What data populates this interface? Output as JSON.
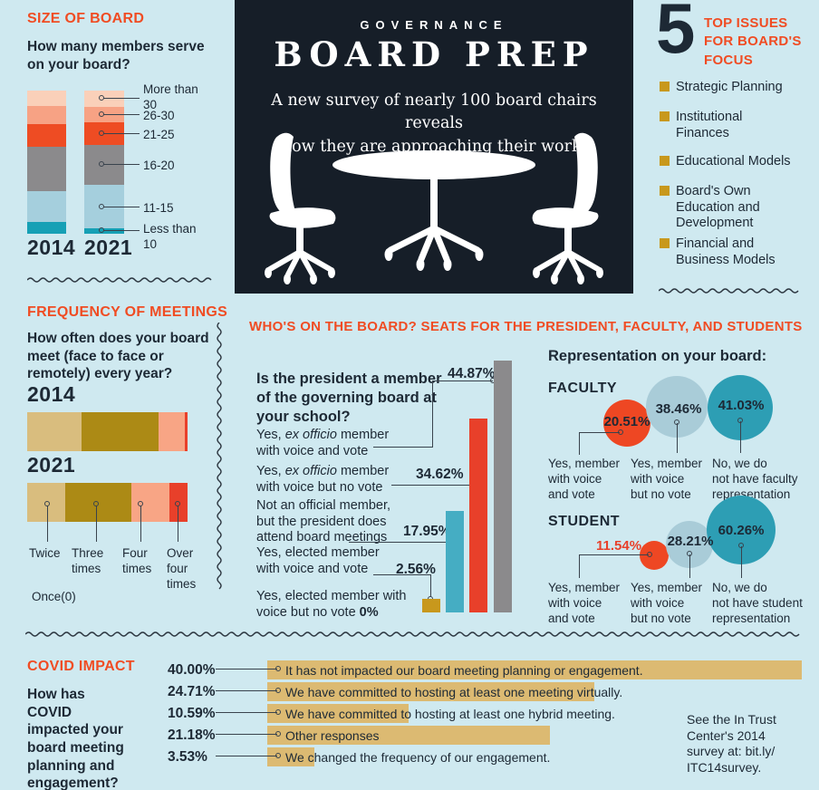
{
  "masthead": {
    "kicker": "GOVERNANCE",
    "title": "BOARD PREP",
    "subtitle": "A new survey of nearly 100 board chairs reveals\nhow they are approaching their work."
  },
  "size_of_board": {
    "heading": "SIZE OF BOARD",
    "question": "How many members serve\non your board?",
    "years": [
      "2014",
      "2021"
    ],
    "labels": [
      "More than\n30",
      "26-30",
      "21-25",
      "16-20",
      "11-15",
      "Less than\n10"
    ]
  },
  "top_issues": {
    "number": "5",
    "heading": "TOP ISSUES\nFOR BOARD'S\nFOCUS",
    "items": [
      "Strategic Planning",
      "Institutional\nFinances",
      "Educational Models",
      "Board's Own\nEducation and\nDevelopment",
      "Financial and\nBusiness Models"
    ]
  },
  "frequency": {
    "heading": "FREQUENCY OF MEETINGS",
    "question": "How often does your board\nmeet (face to face or\nremotely) every year?",
    "years": [
      "2014",
      "2021"
    ],
    "labels": [
      "Twice",
      "Three\ntimes",
      "Four\ntimes",
      "Over\nfour\ntimes"
    ],
    "once_label": "Once(0)"
  },
  "board_seats": {
    "heading": "WHO'S ON THE BOARD?  SEATS FOR THE PRESIDENT, FACULTY, AND STUDENTS",
    "question": "Is the president a member\nof the governing board at\nyour school?",
    "answers": [
      {
        "pre": "Yes, ",
        "italic": "ex officio",
        "post": " member\nwith voice and vote"
      },
      {
        "pre": "Yes, ",
        "italic": "ex officio",
        "post": " member\nwith voice but no vote"
      },
      {
        "pre": "Not an official member,\nbut the president does\nattend board meetings"
      },
      {
        "pre": "Yes, elected member\nwith voice and vote"
      },
      {
        "pre": "Yes, elected member with\nvoice but no vote ",
        "bold": "0%"
      }
    ],
    "values": [
      "44.87%",
      "34.62%",
      "17.95%",
      "2.56%"
    ]
  },
  "representation": {
    "heading": "Representation on your board:",
    "faculty": {
      "heading": "FACULTY",
      "items": [
        {
          "pct": "20.51%",
          "label": "Yes, member\nwith voice\nand vote"
        },
        {
          "pct": "38.46%",
          "label": "Yes, member\nwith voice\nbut no vote"
        },
        {
          "pct": "41.03%",
          "label": "No, we do\nnot have faculty\nrepresentation"
        }
      ]
    },
    "student": {
      "heading": "STUDENT",
      "items": [
        {
          "pct": "11.54%",
          "label": "Yes, member\nwith voice\nand vote"
        },
        {
          "pct": "28.21%",
          "label": "Yes, member\nwith voice\nbut no vote"
        },
        {
          "pct": "60.26%",
          "label": "No, we do\nnot have student\nrepresentation"
        }
      ]
    }
  },
  "covid": {
    "heading": "COVID IMPACT",
    "question": "How has\nCOVID\nimpacted your\nboard meeting\nplanning and\nengagement?",
    "rows": [
      {
        "pct": "40.00%",
        "text": "It has not impacted our board meeting planning or engagement."
      },
      {
        "pct": "24.71%",
        "text": "We have committed to hosting at least one meeting virtually."
      },
      {
        "pct": "10.59%",
        "text": "We have committed to hosting at least one hybrid meeting."
      },
      {
        "pct": "21.18%",
        "text": "Other responses"
      },
      {
        "pct": "3.53%",
        "text": "We changed the frequency of our engagement."
      }
    ],
    "note": "See the In Trust\nCenter's 2014\nsurvey at: bit.ly/\nITC14survey."
  },
  "colors": {
    "background": "#cfe9f0",
    "navy_text": "#1d2935",
    "dark_panel": "#161e28",
    "orange_heading": "#f04c23",
    "red": "#e8402a",
    "salmon": "#f7a284",
    "peach": "#fad0b9",
    "gray": "#8b8a8c",
    "light_blue": "#a5cfdd",
    "teal": "#16a0b5",
    "bar_teal": "#45adc3",
    "bubble_teal": "#2d9eb4",
    "bubble_light_blue": "#a9ccd8",
    "tan": "#d9bd7e",
    "dark_gold": "#ac8a15",
    "gold": "#c8981c",
    "covid_bar": "#dcba72"
  },
  "chart_data": [
    {
      "id": "size-of-board",
      "type": "bar",
      "variant": "stacked-vertical",
      "title": "How many members serve on your board?",
      "categories": [
        "2014",
        "2021"
      ],
      "series": [
        {
          "name": "More than 30",
          "values": [
            11,
            11
          ]
        },
        {
          "name": "26-30",
          "values": [
            13,
            11
          ]
        },
        {
          "name": "21-25",
          "values": [
            16,
            16
          ]
        },
        {
          "name": "16-20",
          "values": [
            31,
            28
          ]
        },
        {
          "name": "11-15",
          "values": [
            21,
            30
          ]
        },
        {
          "name": "Less than 10",
          "values": [
            8,
            4
          ]
        }
      ],
      "unit": "% (estimated from segment heights; values not printed on chart)",
      "colors": {
        "More than 30": "#fad0b9",
        "26-30": "#f7a284",
        "21-25": "#ee4c23",
        "16-20": "#8b8a8c",
        "11-15": "#a5cfdd",
        "Less than 10": "#16a0b5"
      }
    },
    {
      "id": "frequency-of-meetings",
      "type": "bar",
      "variant": "stacked-horizontal",
      "title": "How often does your board meet (face to face or remotely) every year?",
      "categories": [
        "2014",
        "2021"
      ],
      "series": [
        {
          "name": "Twice",
          "values": [
            34,
            24
          ]
        },
        {
          "name": "Three times",
          "values": [
            48,
            41
          ]
        },
        {
          "name": "Four times",
          "values": [
            16,
            24
          ]
        },
        {
          "name": "Over four times",
          "values": [
            2,
            11
          ]
        }
      ],
      "annotation": "Once(0)",
      "unit": "% (estimated from segment widths; values not printed on chart)",
      "colors": {
        "Twice": "#d9bd7e",
        "Three times": "#ac8a15",
        "Four times": "#f8a585",
        "Over four times": "#e8402a"
      }
    },
    {
      "id": "president-board-membership",
      "type": "bar",
      "title": "Is the president a member of the governing board at your school?",
      "categories": [
        "Yes, ex officio member with voice and vote",
        "Yes, ex officio member with voice but no vote",
        "Not an official member, but the president does attend board meetings",
        "Yes, elected member with voice and vote",
        "Yes, elected member with voice but no vote"
      ],
      "values": [
        44.87,
        34.62,
        17.95,
        2.56,
        0
      ],
      "unit": "%",
      "colors": [
        "#8b8a8c",
        "#e8402a",
        "#45adc3",
        "#c8981c",
        null
      ]
    },
    {
      "id": "faculty-representation",
      "type": "bubble",
      "title": "Representation on your board: FACULTY",
      "categories": [
        "Yes, member with voice and vote",
        "Yes, member with voice but no vote",
        "No, we do not have faculty representation"
      ],
      "values": [
        20.51,
        38.46,
        41.03
      ],
      "unit": "%",
      "colors": [
        "#ee4723",
        "#a9ccd8",
        "#2d9eb4"
      ]
    },
    {
      "id": "student-representation",
      "type": "bubble",
      "title": "Representation on your board: STUDENT",
      "categories": [
        "Yes, member with voice and vote",
        "Yes, member with voice but no vote",
        "No, we do not have student representation"
      ],
      "values": [
        11.54,
        28.21,
        60.26
      ],
      "unit": "%",
      "colors": [
        "#ee4723",
        "#a9ccd8",
        "#2d9eb4"
      ]
    },
    {
      "id": "covid-impact",
      "type": "bar",
      "variant": "horizontal",
      "title": "How has COVID impacted your board meeting planning and engagement?",
      "categories": [
        "It has not impacted our board meeting planning or engagement.",
        "We have committed to hosting at least one meeting virtually.",
        "We have committed to hosting at least one hybrid meeting.",
        "Other responses",
        "We changed the frequency of our engagement."
      ],
      "values": [
        40.0,
        24.71,
        10.59,
        21.18,
        3.53
      ],
      "unit": "%",
      "colors": [
        "#dcba72"
      ]
    }
  ]
}
